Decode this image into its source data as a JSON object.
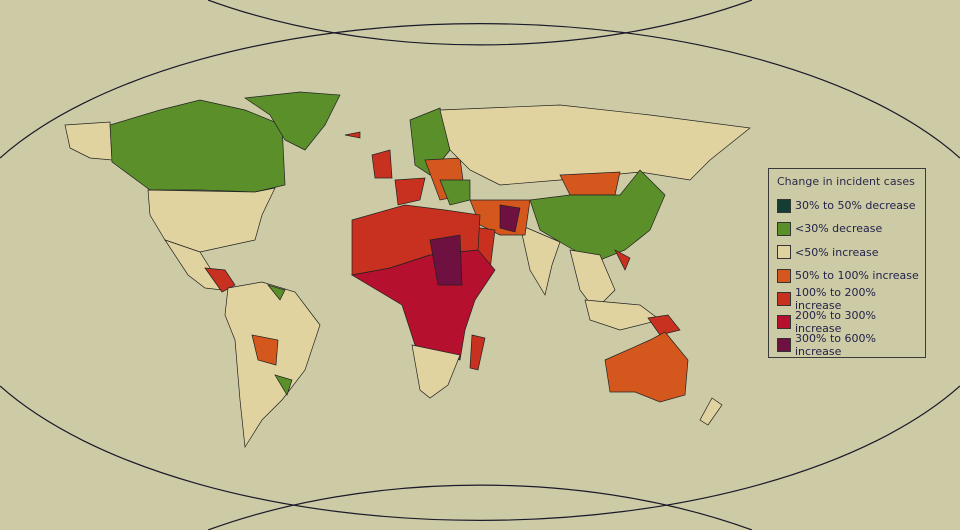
{
  "legend": {
    "title": "Change in incident cases",
    "items": [
      {
        "label": "30% to 50% decrease",
        "color": "#143d33"
      },
      {
        "label": "<30% decrease",
        "color": "#5a8f2a"
      },
      {
        "label": "<50% increase",
        "color": "#e0d3a0"
      },
      {
        "label": "50% to 100% increase",
        "color": "#d4581e"
      },
      {
        "label": "100% to 200% increase",
        "color": "#c8301f"
      },
      {
        "label": "200% to 300% increase",
        "color": "#b5102e"
      },
      {
        "label": "300% to 600% increase",
        "color": "#6e1040"
      }
    ]
  },
  "colors": {
    "background": "#cdcba5",
    "ocean_lines": "#1a1a2a"
  }
}
